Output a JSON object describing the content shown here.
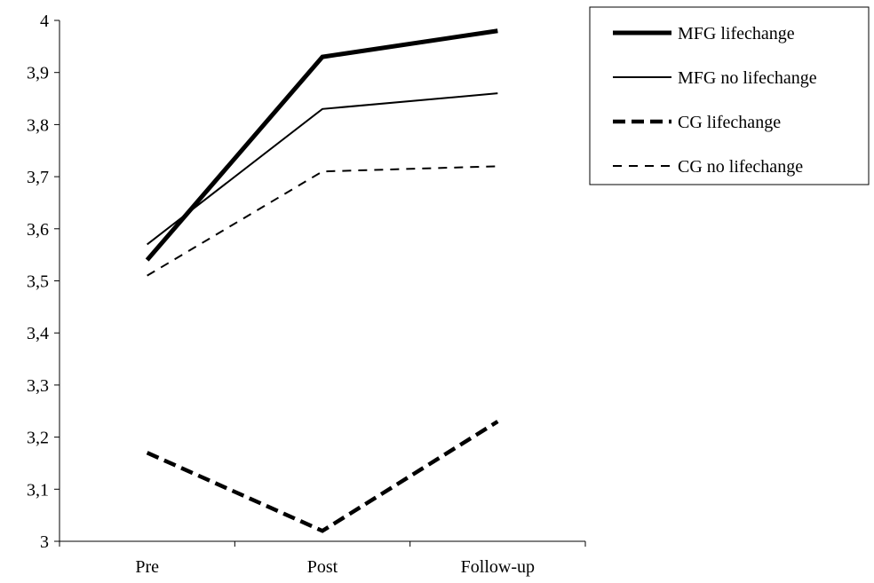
{
  "chart_data": {
    "type": "line",
    "categories": [
      "Pre",
      "Post",
      "Follow-up"
    ],
    "ylim": [
      3,
      4
    ],
    "yticks": [
      "3",
      "3,1",
      "3,2",
      "3,3",
      "3,4",
      "3,5",
      "3,6",
      "3,7",
      "3,8",
      "3,9",
      "4"
    ],
    "yticks_values": [
      3,
      3.1,
      3.2,
      3.3,
      3.4,
      3.5,
      3.6,
      3.7,
      3.8,
      3.9,
      4
    ],
    "grid": false,
    "legend_position": "top-right",
    "series": [
      {
        "name": "MFG lifechange",
        "values": [
          3.54,
          3.93,
          3.98
        ],
        "style": "solid-thick",
        "color": "#000000"
      },
      {
        "name": "MFG no lifechange",
        "values": [
          3.57,
          3.83,
          3.86
        ],
        "style": "solid-thin",
        "color": "#000000"
      },
      {
        "name": "CG lifechange",
        "values": [
          3.17,
          3.02,
          3.23
        ],
        "style": "dashed-thick",
        "color": "#000000"
      },
      {
        "name": "CG no lifechange",
        "values": [
          3.51,
          3.71,
          3.72
        ],
        "style": "dashed-thin",
        "color": "#000000"
      }
    ]
  }
}
